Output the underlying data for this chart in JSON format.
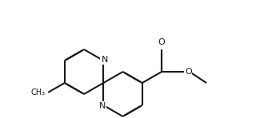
{
  "background_color": "#ffffff",
  "line_color": "#1a1a1a",
  "line_width": 1.5,
  "dbo": 0.018,
  "shrink": 0.1,
  "figsize": [
    3.2,
    1.48
  ],
  "dpi": 100,
  "xlim": [
    -0.05,
    1.05
  ],
  "ylim": [
    -0.05,
    1.05
  ]
}
